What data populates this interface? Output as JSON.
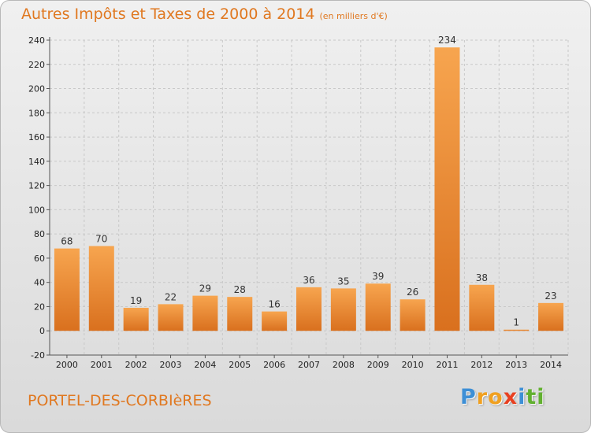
{
  "header": {
    "title": "Autres Impôts et Taxes de 2000 à 2014",
    "unit": "(en milliers d'€)"
  },
  "footer": {
    "town": "PORTEL-DES-CORBIèRES",
    "logo_letters": [
      "P",
      "r",
      "o",
      "x",
      "i",
      "t",
      "i"
    ]
  },
  "colors": {
    "bar_light": "#f7a54f",
    "bar_dark": "#d9701e",
    "title": "#e07820",
    "logo": [
      "#3d8fd6",
      "#f0a020",
      "#f0a020",
      "#e84020",
      "#3d8fd6",
      "#62b030",
      "#62b030"
    ]
  },
  "chart_data": {
    "type": "bar",
    "title": "Autres Impôts et Taxes de 2000 à 2014",
    "categories": [
      "2000",
      "2001",
      "2002",
      "2003",
      "2004",
      "2005",
      "2006",
      "2007",
      "2008",
      "2009",
      "2010",
      "2011",
      "2012",
      "2013",
      "2014"
    ],
    "values": [
      68,
      70,
      19,
      22,
      29,
      28,
      16,
      36,
      35,
      39,
      26,
      234,
      38,
      1,
      23
    ],
    "ylim": [
      -20,
      240
    ],
    "yticks": [
      -20,
      0,
      20,
      40,
      60,
      80,
      100,
      120,
      140,
      160,
      180,
      200,
      220,
      240
    ],
    "grid": true
  }
}
